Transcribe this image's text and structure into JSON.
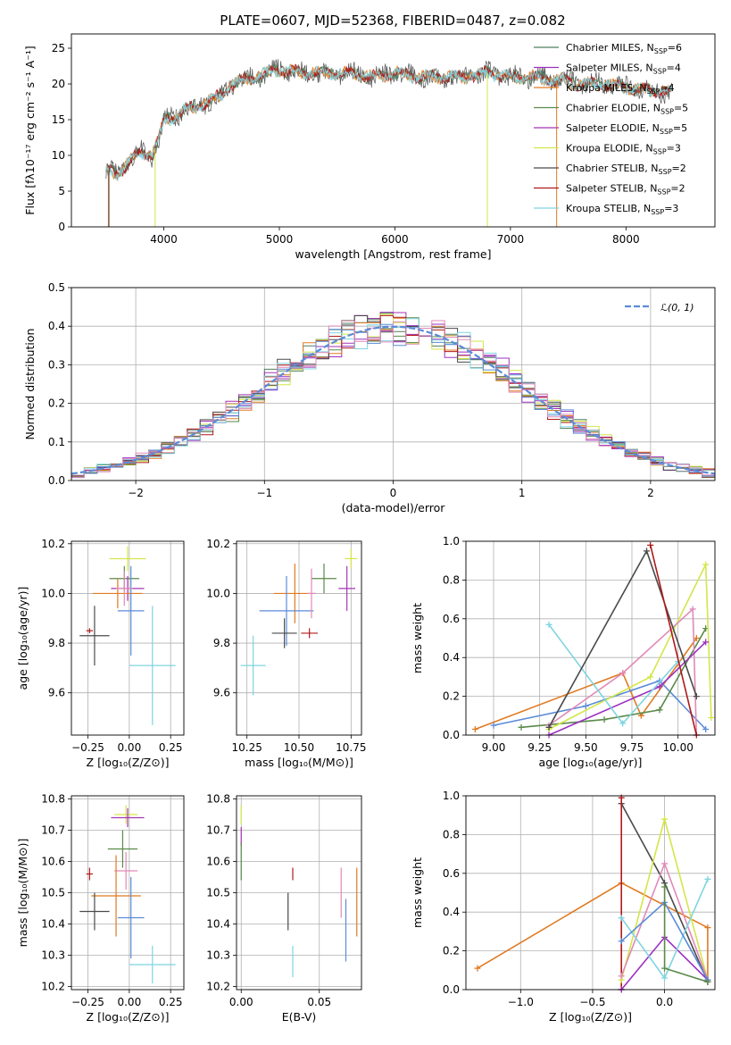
{
  "title": "PLATE=0607, MJD=52368, FIBERID=0487, z=0.082",
  "colors": [
    "#4f7f5f",
    "#9b30c0",
    "#e07a22",
    "#5a8a4a",
    "#a535b5",
    "#d4e64a",
    "#4a4a4a",
    "#b01a1a",
    "#7fd4e0",
    "#5b8bd8",
    "#e08ab8"
  ],
  "chart_data": [
    {
      "id": "spectrum",
      "type": "line",
      "xlabel": "wavelength [Angstrom, rest frame]",
      "ylabel": "Flux [fλ10⁻¹⁷ erg cm⁻² s⁻¹ A⁻¹]",
      "xlim": [
        3200,
        8770
      ],
      "ylim": [
        0,
        27
      ],
      "xticks": [
        4000,
        5000,
        6000,
        7000,
        8000
      ],
      "yticks": [
        0,
        5,
        10,
        15,
        20,
        25
      ],
      "grid": false,
      "legend_position": "right",
      "continuum": {
        "x": [
          3500,
          3600,
          3700,
          3800,
          3900,
          3950,
          4000,
          4100,
          4200,
          4300,
          4400,
          4500,
          4600,
          4800,
          5000,
          5200,
          5400,
          5600,
          5800,
          6000,
          6200,
          6400,
          6600,
          6800,
          7000,
          7200,
          7400,
          7600,
          7800,
          8000,
          8200,
          8400
        ],
        "y": [
          8,
          7.5,
          9,
          10.5,
          10,
          12,
          15,
          15.5,
          16.5,
          17,
          17.5,
          18.5,
          20,
          21,
          22,
          21.5,
          21.5,
          21.5,
          21,
          21.5,
          21,
          21,
          21,
          21.5,
          21,
          21,
          20.5,
          20,
          20,
          19.5,
          19,
          19
        ]
      },
      "series": [
        {
          "label": "Chabrier MILES, N",
          "sub": "SSP",
          "suffix": "=6",
          "color": "#4f7f5f"
        },
        {
          "label": "Salpeter MILES, N",
          "sub": "SSP",
          "suffix": "=4",
          "color": "#9b30c0"
        },
        {
          "label": "Kroupa MILES, N",
          "sub": "SSP",
          "suffix": "=4",
          "color": "#e07a22"
        },
        {
          "label": "Chabrier ELODIE, N",
          "sub": "SSP",
          "suffix": "=5",
          "color": "#5a8a4a"
        },
        {
          "label": "Salpeter ELODIE, N",
          "sub": "SSP",
          "suffix": "=5",
          "color": "#a535b5"
        },
        {
          "label": "Kroupa ELODIE, N",
          "sub": "SSP",
          "suffix": "=3",
          "color": "#d4e64a"
        },
        {
          "label": "Chabrier STELIB, N",
          "sub": "SSP",
          "suffix": "=2",
          "color": "#4a4a4a"
        },
        {
          "label": "Salpeter STELIB, N",
          "sub": "SSP",
          "suffix": "=2",
          "color": "#b01a1a"
        },
        {
          "label": "Kroupa STELIB, N",
          "sub": "SSP",
          "suffix": "=3",
          "color": "#7fd4e0"
        }
      ],
      "drops": [
        {
          "x": 3520,
          "color": "#e07a22"
        },
        {
          "x": 3525,
          "color": "#4a4a4a"
        },
        {
          "x": 3925,
          "color": "#d4e64a"
        },
        {
          "x": 6800,
          "color": "#d4e64a"
        },
        {
          "x": 7400,
          "color": "#e07a22"
        }
      ]
    },
    {
      "id": "residuals",
      "type": "histogram",
      "xlabel": "(data-model)/error",
      "ylabel": "Normed distribution",
      "xlim": [
        -2.5,
        2.5
      ],
      "ylim": [
        0,
        0.5
      ],
      "xticks": [
        -2,
        -1,
        0,
        1,
        2
      ],
      "yticks": [
        0.0,
        0.1,
        0.2,
        0.3,
        0.4,
        0.5
      ],
      "grid": true,
      "legend": "ℒ(0, 1)",
      "legend_position": "top-right",
      "bin_width": 0.1
    },
    {
      "id": "age-vs-Z",
      "type": "errorbar",
      "xlabel": "Z [log₁₀(Z/Z⊙)]",
      "ylabel": "age  [log₁₀(age/yr)]",
      "xlim": [
        -0.35,
        0.33
      ],
      "ylim": [
        9.43,
        10.21
      ],
      "xticks": [
        -0.25,
        0.0,
        0.25
      ],
      "xticklabels": [
        "−0.25",
        "0.00",
        "0.25"
      ],
      "yticks": [
        9.6,
        9.8,
        10.0,
        10.2
      ],
      "grid": true,
      "points": [
        {
          "x": -0.01,
          "xe": 0.11,
          "y": 10.14,
          "ye": 0.05,
          "color": "#d4e64a"
        },
        {
          "x": -0.03,
          "xe": 0.09,
          "y": 10.06,
          "ye": 0.05,
          "color": "#5a8a4a"
        },
        {
          "x": -0.01,
          "xe": 0.1,
          "y": 10.02,
          "ye": 0.05,
          "color": "#a535b5"
        },
        {
          "x": -0.07,
          "xe": 0.15,
          "y": 10.0,
          "ye": 0.06,
          "color": "#e07a22"
        },
        {
          "x": 0.01,
          "xe": 0.08,
          "y": 9.93,
          "ye": 0.18,
          "color": "#5b8bd8"
        },
        {
          "x": -0.03,
          "xe": 0.05,
          "y": 10.02,
          "ye": 0.07,
          "color": "#e08ab8"
        },
        {
          "x": -0.24,
          "xe": 0.02,
          "y": 9.85,
          "ye": 0.01,
          "color": "#b01a1a"
        },
        {
          "x": -0.21,
          "xe": 0.09,
          "y": 9.83,
          "ye": 0.12,
          "color": "#4a4a4a"
        },
        {
          "x": 0.14,
          "xe": 0.14,
          "y": 9.71,
          "ye": 0.24,
          "color": "#7fd4e0"
        }
      ]
    },
    {
      "id": "age-vs-mass",
      "type": "errorbar",
      "xlabel": "mass [log₁₀(M/M⊙)]",
      "ylabel": "",
      "xlim": [
        10.2,
        10.8
      ],
      "ylim": [
        9.43,
        10.21
      ],
      "xticks": [
        10.25,
        10.5,
        10.75
      ],
      "xticklabels": [
        "10.25",
        "10.50",
        "10.75"
      ],
      "yticks": [
        9.6,
        9.8,
        10.0,
        10.2
      ],
      "grid": true,
      "points": [
        {
          "x": 10.75,
          "xe": 0.03,
          "y": 10.14,
          "ye": 0.04,
          "color": "#d4e64a"
        },
        {
          "x": 10.62,
          "xe": 0.06,
          "y": 10.06,
          "ye": 0.06,
          "color": "#5a8a4a"
        },
        {
          "x": 10.73,
          "xe": 0.04,
          "y": 10.02,
          "ye": 0.09,
          "color": "#a535b5"
        },
        {
          "x": 10.48,
          "xe": 0.1,
          "y": 10.0,
          "ye": 0.12,
          "color": "#e07a22"
        },
        {
          "x": 10.44,
          "xe": 0.13,
          "y": 9.93,
          "ye": 0.14,
          "color": "#5b8bd8"
        },
        {
          "x": 10.56,
          "xe": 0.02,
          "y": 10.0,
          "ye": 0.1,
          "color": "#e08ab8"
        },
        {
          "x": 10.55,
          "xe": 0.04,
          "y": 9.84,
          "ye": 0.02,
          "color": "#b01a1a"
        },
        {
          "x": 10.43,
          "xe": 0.06,
          "y": 9.84,
          "ye": 0.06,
          "color": "#4a4a4a"
        },
        {
          "x": 10.28,
          "xe": 0.06,
          "y": 9.71,
          "ye": 0.12,
          "color": "#7fd4e0"
        }
      ]
    },
    {
      "id": "weight-vs-age",
      "type": "line",
      "xlabel": "age  [log₁₀(age/yr)]",
      "ylabel": "mass weight",
      "xlim": [
        8.85,
        10.2
      ],
      "ylim": [
        0,
        1.0
      ],
      "xticks": [
        9.0,
        9.25,
        9.5,
        9.75,
        10.0
      ],
      "xticklabels": [
        "9.00",
        "9.25",
        "9.50",
        "9.75",
        "10.00"
      ],
      "yticks": [
        0.0,
        0.2,
        0.4,
        0.6,
        0.8,
        1.0
      ],
      "grid": true,
      "series": [
        {
          "color": "#e07a22",
          "x": [
            8.9,
            9.7,
            9.8,
            10.1
          ],
          "y": [
            0.03,
            0.32,
            0.1,
            0.5
          ]
        },
        {
          "color": "#5b8bd8",
          "x": [
            9.0,
            9.5,
            9.9,
            10.15
          ],
          "y": [
            0.05,
            0.15,
            0.28,
            0.03
          ]
        },
        {
          "color": "#5a8a4a",
          "x": [
            9.15,
            9.6,
            9.9,
            10.15
          ],
          "y": [
            0.04,
            0.08,
            0.13,
            0.55
          ]
        },
        {
          "color": "#d4e64a",
          "x": [
            9.3,
            9.85,
            10.15,
            10.18
          ],
          "y": [
            0.03,
            0.3,
            0.88,
            0.09
          ]
        },
        {
          "color": "#e08ab8",
          "x": [
            9.3,
            9.7,
            10.08,
            10.1
          ],
          "y": [
            0.05,
            0.32,
            0.65,
            0.0
          ]
        },
        {
          "color": "#9b30c0",
          "x": [
            9.3,
            9.9,
            10.15
          ],
          "y": [
            0.0,
            0.25,
            0.48
          ]
        },
        {
          "color": "#7fd4e0",
          "x": [
            9.3,
            9.7,
            10.0
          ],
          "y": [
            0.57,
            0.06,
            0.38
          ]
        },
        {
          "color": "#4a4a4a",
          "x": [
            9.3,
            9.83,
            10.1
          ],
          "y": [
            0.04,
            0.95,
            0.2
          ]
        },
        {
          "color": "#b01a1a",
          "x": [
            9.85,
            10.1
          ],
          "y": [
            0.98,
            0.0
          ]
        }
      ]
    },
    {
      "id": "mass-vs-Z",
      "type": "errorbar",
      "xlabel": "Z [log₁₀(Z/Z⊙)]",
      "ylabel": "mass [log₁₀(M/M⊙)]",
      "xlim": [
        -0.35,
        0.33
      ],
      "ylim": [
        10.19,
        10.81
      ],
      "xticks": [
        -0.25,
        0.0,
        0.25
      ],
      "xticklabels": [
        "−0.25",
        "0.00",
        "0.25"
      ],
      "yticks": [
        10.2,
        10.3,
        10.4,
        10.5,
        10.6,
        10.7,
        10.8
      ],
      "grid": true,
      "points": [
        {
          "x": -0.02,
          "xe": 0.07,
          "y": 10.75,
          "ye": 0.03,
          "color": "#d4e64a"
        },
        {
          "x": -0.01,
          "xe": 0.1,
          "y": 10.74,
          "ye": 0.03,
          "color": "#a535b5"
        },
        {
          "x": -0.04,
          "xe": 0.09,
          "y": 10.64,
          "ye": 0.06,
          "color": "#5a8a4a"
        },
        {
          "x": -0.02,
          "xe": 0.07,
          "y": 10.57,
          "ye": 0.06,
          "color": "#e08ab8"
        },
        {
          "x": -0.08,
          "xe": 0.15,
          "y": 10.49,
          "ye": 0.13,
          "color": "#e07a22"
        },
        {
          "x": 0.01,
          "xe": 0.08,
          "y": 10.42,
          "ye": 0.13,
          "color": "#5b8bd8"
        },
        {
          "x": -0.24,
          "xe": 0.02,
          "y": 10.56,
          "ye": 0.02,
          "color": "#b01a1a"
        },
        {
          "x": -0.21,
          "xe": 0.09,
          "y": 10.44,
          "ye": 0.06,
          "color": "#4a4a4a"
        },
        {
          "x": 0.14,
          "xe": 0.14,
          "y": 10.27,
          "ye": 0.06,
          "color": "#7fd4e0"
        }
      ]
    },
    {
      "id": "mass-vs-EBV",
      "type": "errorbar",
      "xlabel": "E(B-V)",
      "ylabel": "",
      "xlim": [
        -0.003,
        0.077
      ],
      "ylim": [
        10.19,
        10.81
      ],
      "xticks": [
        0.0,
        0.05
      ],
      "xticklabels": [
        "0.00",
        "0.05"
      ],
      "yticks": [
        10.2,
        10.3,
        10.4,
        10.5,
        10.6,
        10.7,
        10.8
      ],
      "grid": true,
      "points": [
        {
          "x": 0.0,
          "xe": 0,
          "y": 10.75,
          "ye": 0.03,
          "color": "#d4e64a"
        },
        {
          "x": 0.0,
          "xe": 0,
          "y": 10.68,
          "ye": 0.03,
          "color": "#a535b5"
        },
        {
          "x": 0.0,
          "xe": 0,
          "y": 10.6,
          "ye": 0.06,
          "color": "#5a8a4a"
        },
        {
          "x": 0.033,
          "xe": 0,
          "y": 10.56,
          "ye": 0.02,
          "color": "#b01a1a"
        },
        {
          "x": 0.03,
          "xe": 0,
          "y": 10.44,
          "ye": 0.06,
          "color": "#4a4a4a"
        },
        {
          "x": 0.033,
          "xe": 0,
          "y": 10.28,
          "ye": 0.05,
          "color": "#7fd4e0"
        },
        {
          "x": 0.064,
          "xe": 0,
          "y": 10.5,
          "ye": 0.08,
          "color": "#e08ab8"
        },
        {
          "x": 0.067,
          "xe": 0,
          "y": 10.38,
          "ye": 0.1,
          "color": "#5b8bd8"
        },
        {
          "x": 0.074,
          "xe": 0,
          "y": 10.47,
          "ye": 0.11,
          "color": "#e07a22"
        }
      ]
    },
    {
      "id": "weight-vs-Z",
      "type": "line",
      "xlabel": "Z [log₁₀(Z/Z⊙)]",
      "ylabel": "mass weight",
      "xlim": [
        -1.38,
        0.35
      ],
      "ylim": [
        0,
        1.0
      ],
      "xticks": [
        -1.0,
        -0.5,
        0.0
      ],
      "xticklabels": [
        "−1.0",
        "−0.5",
        "0.0"
      ],
      "yticks": [
        0.0,
        0.2,
        0.4,
        0.6,
        0.8,
        1.0
      ],
      "grid": true,
      "series": [
        {
          "color": "#e07a22",
          "x": [
            -1.3,
            -0.3,
            0.3,
            0.3
          ],
          "y": [
            0.11,
            0.55,
            0.32,
            0.04
          ]
        },
        {
          "color": "#4a4a4a",
          "x": [
            -0.3,
            0.0,
            0.3
          ],
          "y": [
            0.96,
            0.55,
            0.04
          ]
        },
        {
          "color": "#b01a1a",
          "x": [
            -0.3,
            -0.3
          ],
          "y": [
            0.99,
            0.0
          ]
        },
        {
          "color": "#d4e64a",
          "x": [
            -0.3,
            0.0,
            0.3
          ],
          "y": [
            0.05,
            0.88,
            0.05
          ]
        },
        {
          "color": "#e08ab8",
          "x": [
            -0.3,
            0.0,
            0.3
          ],
          "y": [
            0.07,
            0.65,
            0.05
          ]
        },
        {
          "color": "#9b30c0",
          "x": [
            -0.3,
            0.0,
            0.3
          ],
          "y": [
            0.0,
            0.27,
            0.05
          ]
        },
        {
          "color": "#7fd4e0",
          "x": [
            -0.3,
            0.0,
            0.3
          ],
          "y": [
            0.37,
            0.06,
            0.57
          ]
        },
        {
          "color": "#5b8bd8",
          "x": [
            -0.3,
            0.0,
            0.3
          ],
          "y": [
            0.25,
            0.45,
            0.05
          ]
        },
        {
          "color": "#5a8a4a",
          "x": [
            0.0,
            0.0,
            0.3
          ],
          "y": [
            0.53,
            0.11,
            0.04
          ]
        }
      ]
    }
  ]
}
